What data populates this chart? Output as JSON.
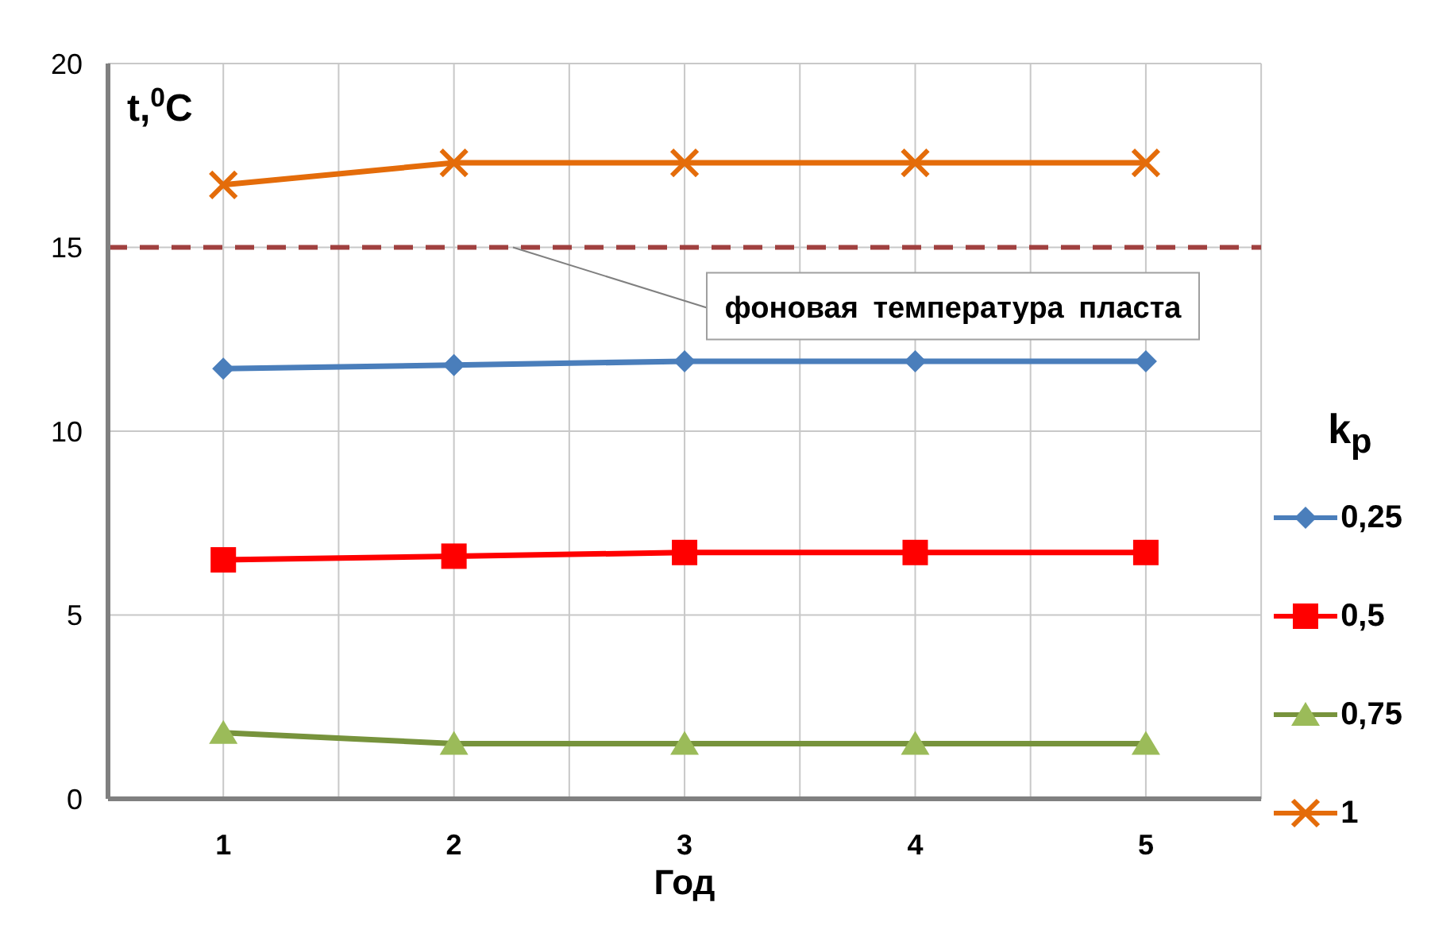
{
  "chart_data": {
    "type": "line",
    "xlabel": "Год",
    "ylabel": "t,$^{0}$C",
    "legend_title": "k$_{p}$",
    "categories": [
      "1",
      "2",
      "3",
      "4",
      "5"
    ],
    "series": [
      {
        "name": "0,25",
        "color": "#4a7ebb",
        "marker": "diamond",
        "values": [
          11.7,
          11.8,
          11.9,
          11.9,
          11.9
        ]
      },
      {
        "name": "0,5",
        "color": "#ff0000",
        "marker": "square",
        "values": [
          6.5,
          6.6,
          6.7,
          6.7,
          6.7
        ]
      },
      {
        "name": "0,75",
        "color": "#77933c",
        "marker": "triangle",
        "values": [
          1.8,
          1.5,
          1.5,
          1.5,
          1.5
        ]
      },
      {
        "name": "1",
        "color": "#e46c0a",
        "marker": "cross",
        "values": [
          16.7,
          17.3,
          17.3,
          17.3,
          17.3
        ]
      }
    ],
    "ylim": [
      0,
      20
    ],
    "yticks": [
      0,
      5,
      10,
      15,
      20
    ],
    "grid": true,
    "legend": "right",
    "line_style": "solid",
    "ref_lines": [
      {
        "axis": "y",
        "value": 15,
        "label": "фоновая температура пласта",
        "color": "#a0403f",
        "line_style": "dashed"
      }
    ]
  }
}
